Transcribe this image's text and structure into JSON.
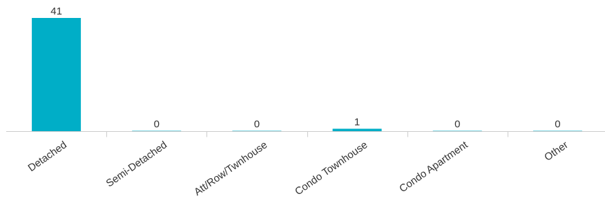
{
  "chart_data": {
    "type": "bar",
    "categories": [
      "Detached",
      "Semi-Detached",
      "Att/Row/Twnhouse",
      "Condo Townhouse",
      "Condo Apartment",
      "Other"
    ],
    "values": [
      41,
      0,
      0,
      1,
      0,
      0
    ],
    "value_labels": [
      "41",
      "0",
      "0",
      "1",
      "0",
      "0"
    ],
    "ylim": [
      0,
      41
    ],
    "grid": false,
    "legend": "none",
    "colors": {
      "bar": "#00AEC7",
      "axis": "#cccccc",
      "text": "#333333"
    }
  }
}
